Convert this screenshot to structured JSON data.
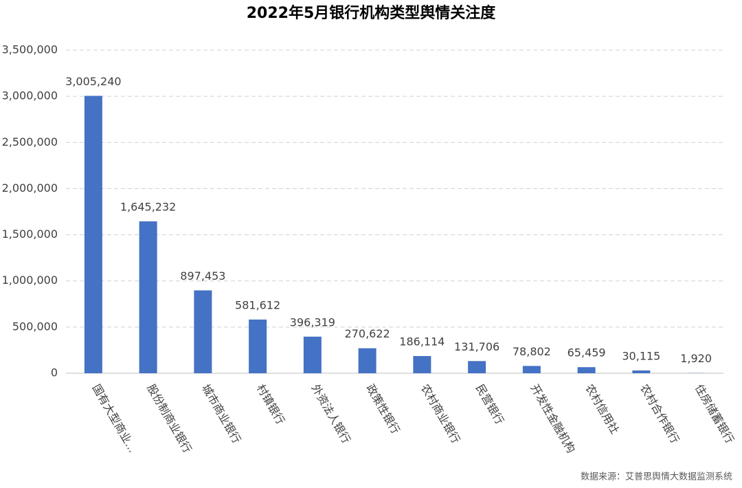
{
  "chart_data": {
    "type": "bar",
    "title": "2022年5月银行机构类型舆情关注度",
    "categories": [
      "国有大型商业...",
      "股份制商业银行",
      "城市商业银行",
      "村镇银行",
      "外资法人银行",
      "政策性银行",
      "农村商业银行",
      "民营银行",
      "开发性金融机构",
      "农村信用社",
      "农村合作银行",
      "住房储蓄银行"
    ],
    "values": [
      3005240,
      1645232,
      897453,
      581612,
      396319,
      270622,
      186114,
      131706,
      78802,
      65459,
      30115,
      1920
    ],
    "value_labels": [
      "3,005,240",
      "1,645,232",
      "897,453",
      "581,612",
      "396,319",
      "270,622",
      "186,114",
      "131,706",
      "78,802",
      "65,459",
      "30,115",
      "1,920"
    ],
    "color": "#4472c4",
    "ylim": [
      0,
      3500000
    ],
    "yticks": [
      0,
      {
        "value": 500000,
        "label": "500,000"
      },
      {
        "value": 1000000,
        "label": "1,000,000"
      },
      {
        "value": 1500000,
        "label": "1,500,000"
      },
      {
        "value": 2000000,
        "label": "2,000,000"
      },
      {
        "value": 2500000,
        "label": "2,500,000"
      },
      {
        "value": 3000000,
        "label": "3,000,000"
      },
      {
        "value": 3500000,
        "label": "3,500,000"
      }
    ],
    "grid": true,
    "source": "数据来源：艾普思舆情大数据监测系统"
  }
}
